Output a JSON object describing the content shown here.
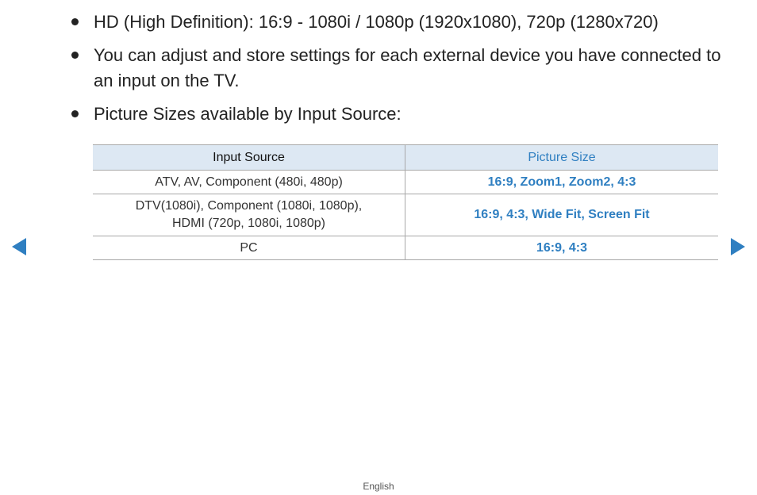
{
  "bullets": [
    {
      "text": "HD (High Definition): 16:9 - 1080i / 1080p (1920x1080), 720p (1280x720)"
    },
    {
      "text": "You can adjust and store settings for each external device you have connected to an input on the TV."
    },
    {
      "text": "Picture Sizes available by Input Source:"
    }
  ],
  "table": {
    "headers": {
      "input_source": "Input Source",
      "picture_size": "Picture Size"
    },
    "rows": [
      {
        "input": "ATV, AV, Component (480i, 480p)",
        "input_line2": "",
        "size": "16:9, Zoom1, Zoom2, 4:3"
      },
      {
        "input": "DTV(1080i), Component (1080i, 1080p),",
        "input_line2": "HDMI (720p, 1080i, 1080p)",
        "size": "16:9, 4:3, Wide Fit, Screen Fit"
      },
      {
        "input": "PC",
        "input_line2": "",
        "size": "16:9, 4:3"
      }
    ]
  },
  "nav": {
    "prev_icon": "triangle-left-icon",
    "next_icon": "triangle-right-icon",
    "color": "#2f7fc1"
  },
  "footer": {
    "language": "English"
  },
  "colors": {
    "accent": "#2f7fc1",
    "header_bg": "#dde8f3",
    "text": "#222222"
  }
}
